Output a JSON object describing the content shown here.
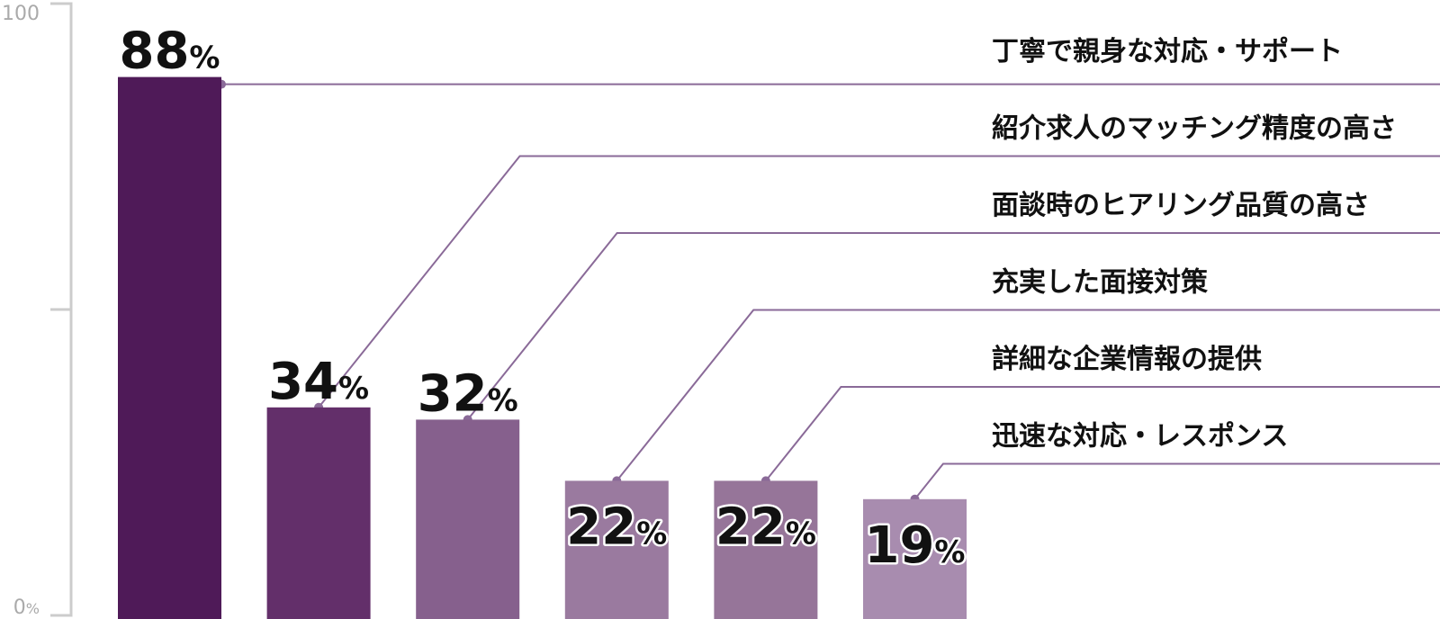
{
  "chart_data": {
    "type": "bar",
    "categories": [
      "丁寧で親身な対応・サポート",
      "紹介求人のマッチング精度の高さ",
      "面談時のヒアリング品質の高さ",
      "充実した面接対策",
      "詳細な企業情報の提供",
      "迅速な対応・レスポンス"
    ],
    "values": [
      88,
      34,
      32,
      22,
      22,
      19
    ],
    "value_unit": "%",
    "ylim": [
      0,
      100
    ],
    "y_tick_labels": [
      {
        "value": 100,
        "text": "100",
        "unit": ""
      },
      {
        "value": 0,
        "text": "0",
        "unit": "%"
      }
    ],
    "bar_colors": [
      "#4f1a58",
      "#632f6a",
      "#86608d",
      "#9a7a9f",
      "#967599",
      "#a88caf"
    ],
    "leader_color": "#8a6a98",
    "grid": false,
    "legend": "none"
  }
}
